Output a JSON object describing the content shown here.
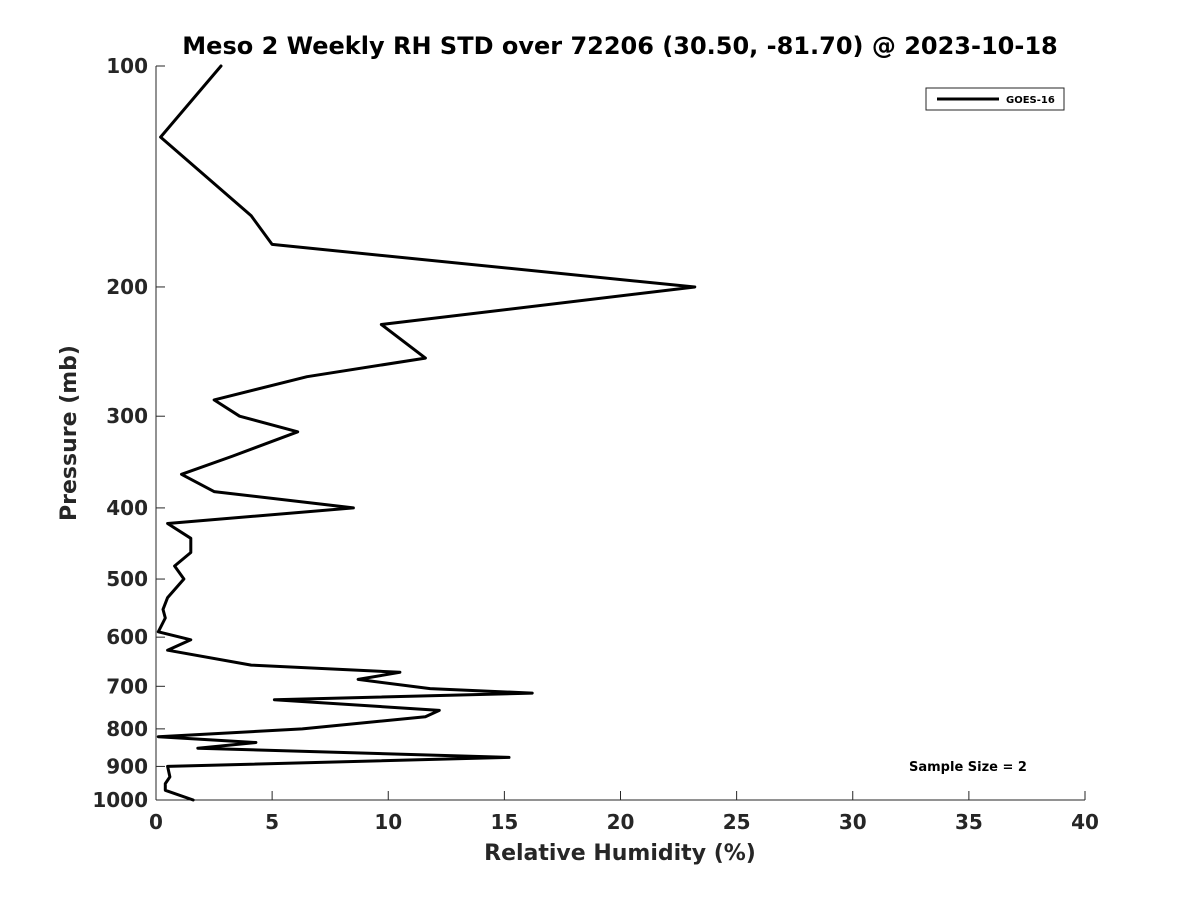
{
  "chart_data": {
    "type": "line",
    "title": "Meso 2 Weekly RH STD over 72206 (30.50, -81.70) @ 2023-10-18",
    "xlabel": "Relative Humidity (%)",
    "ylabel": "Pressure (mb)",
    "xlim": [
      0,
      40
    ],
    "ylim": [
      100,
      1000
    ],
    "y_scale": "log",
    "y_reversed": true,
    "grid": false,
    "legend_position": "top-right",
    "xticks": [
      "0",
      "5",
      "10",
      "15",
      "20",
      "25",
      "30",
      "35",
      "40"
    ],
    "yticks": [
      "100",
      "200",
      "300",
      "400",
      "500",
      "600",
      "700",
      "800",
      "900",
      "1000"
    ],
    "annotation": "Sample Size = 2",
    "series": [
      {
        "name": "GOES-16",
        "color": "#000000",
        "points": [
          [
            2.8,
            100
          ],
          [
            0.2,
            125
          ],
          [
            4.1,
            160
          ],
          [
            5.0,
            175
          ],
          [
            23.2,
            200
          ],
          [
            9.7,
            225
          ],
          [
            11.6,
            250
          ],
          [
            6.5,
            265
          ],
          [
            2.5,
            285
          ],
          [
            3.6,
            300
          ],
          [
            6.1,
            315
          ],
          [
            3.3,
            340
          ],
          [
            1.1,
            360
          ],
          [
            2.5,
            380
          ],
          [
            8.5,
            400
          ],
          [
            0.5,
            420
          ],
          [
            1.5,
            440
          ],
          [
            1.5,
            460
          ],
          [
            0.8,
            480
          ],
          [
            1.2,
            500
          ],
          [
            0.5,
            530
          ],
          [
            0.3,
            550
          ],
          [
            0.4,
            565
          ],
          [
            0.1,
            590
          ],
          [
            1.5,
            605
          ],
          [
            0.5,
            625
          ],
          [
            4.1,
            655
          ],
          [
            10.5,
            670
          ],
          [
            8.7,
            685
          ],
          [
            11.8,
            705
          ],
          [
            16.2,
            715
          ],
          [
            5.1,
            730
          ],
          [
            12.2,
            755
          ],
          [
            11.6,
            770
          ],
          [
            6.3,
            800
          ],
          [
            0.1,
            820
          ],
          [
            4.3,
            835
          ],
          [
            1.8,
            850
          ],
          [
            15.2,
            875
          ],
          [
            0.5,
            900
          ],
          [
            0.6,
            930
          ],
          [
            0.4,
            950
          ],
          [
            0.4,
            970
          ],
          [
            1.6,
            1000
          ]
        ]
      }
    ]
  }
}
